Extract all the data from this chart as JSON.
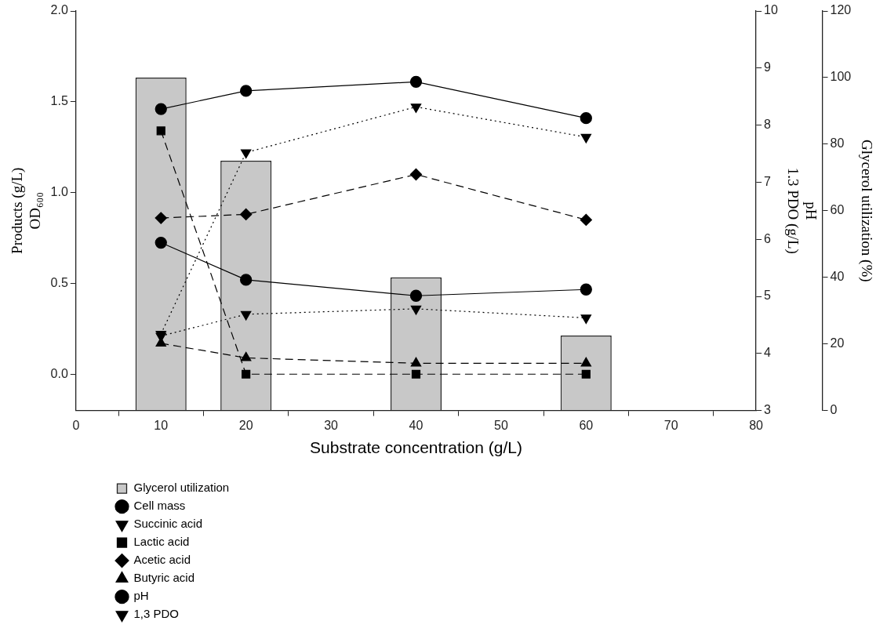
{
  "chart_data": {
    "type": "line",
    "xlabel": "Substrate concentration (g/L)",
    "ylabel": "Products (g/L)\nOD₆₀₀",
    "y2label": "pH\n1.3 PDO (g/L)",
    "y3label": "Glycerol utilization (%)",
    "x": [
      10,
      20,
      40,
      60
    ],
    "xlim": [
      0,
      80
    ],
    "xticks": [
      0,
      10,
      20,
      30,
      40,
      50,
      60,
      70,
      80
    ],
    "ylim": [
      -0.2,
      2.0
    ],
    "yticks": [
      {
        "value": 0,
        "label": "0.0"
      },
      0.5,
      {
        "value": 1,
        "label": "1.0"
      },
      1.5,
      {
        "value": 2,
        "label": "2.0"
      }
    ],
    "y2lim": [
      3,
      10
    ],
    "y2ticks": [
      3,
      4,
      5,
      6,
      7,
      8,
      9,
      10
    ],
    "y3lim": [
      0,
      120
    ],
    "y3ticks": [
      0,
      20,
      40,
      60,
      80,
      100,
      120
    ],
    "grid": false,
    "legend": "bottom left",
    "series": [
      {
        "name": "Glycerol utilization",
        "type": "bar",
        "axis": "y3",
        "color": "#c8c8c8",
        "values": [
          100,
          75,
          40,
          22.5
        ]
      },
      {
        "name": "Cell mass",
        "axis": "y",
        "color": "#000000",
        "marker": "circle",
        "line_style": "solid",
        "values": [
          1.46,
          1.56,
          1.61,
          1.41
        ]
      },
      {
        "name": "Succinic acid",
        "axis": "y",
        "color": "#000000",
        "marker": "triangle_down",
        "line_style": "dotted",
        "values": [
          0.21,
          0.33,
          0.36,
          0.31
        ]
      },
      {
        "name": "Lactic acid",
        "axis": "y",
        "color": "#000000",
        "marker": "square",
        "line_style": "dashed",
        "values": [
          1.34,
          0.0,
          0.0,
          0.0
        ]
      },
      {
        "name": "Acetic acid",
        "axis": "y",
        "color": "#000000",
        "marker": "diamond",
        "line_style": "dashed",
        "values": [
          0.86,
          0.88,
          1.1,
          0.85
        ]
      },
      {
        "name": "Butyric acid",
        "axis": "y",
        "color": "#000000",
        "marker": "triangle",
        "line_style": "dashed",
        "values": [
          0.17,
          0.09,
          0.06,
          0.06
        ]
      },
      {
        "name": "pH",
        "axis": "y2",
        "color": "#000000",
        "marker": "circle",
        "line_style": "solid",
        "values": [
          5.94,
          5.29,
          5.01,
          5.12
        ]
      },
      {
        "name": "1,3 PDO",
        "axis": "y2",
        "color": "#000000",
        "marker": "triangle_down",
        "line_style": "dotted",
        "values": [
          4.34,
          7.52,
          8.32,
          7.79
        ]
      }
    ]
  }
}
